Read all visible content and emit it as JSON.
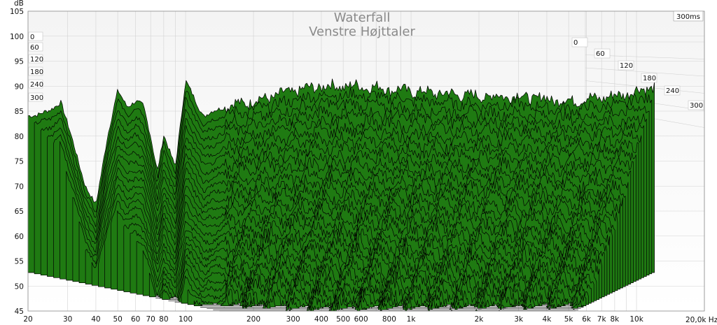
{
  "chart_data": {
    "type": "area",
    "title": "Waterfall",
    "subtitle": "Venstre Højttaler",
    "ylabel": "dB",
    "xlabel_unit": "20,0k Hz",
    "xscale": "log",
    "xlim": [
      20,
      20000
    ],
    "ylim": [
      45,
      105
    ],
    "time_span_label": "300ms",
    "y_ticks": [
      "105",
      "100",
      "95",
      "90",
      "85",
      "80",
      "75",
      "70",
      "65",
      "60",
      "55",
      "50",
      "45"
    ],
    "x_ticks": [
      "20",
      "30",
      "40",
      "50",
      "60",
      "70",
      "80",
      "100",
      "200",
      "300",
      "400",
      "500",
      "600",
      "800",
      "1k",
      "2k",
      "3k",
      "4k",
      "5k",
      "6k",
      "7k",
      "8k",
      "10k"
    ],
    "left_depth_labels": [
      "0",
      "60",
      "120",
      "180",
      "240",
      "300"
    ],
    "right_depth_labels": [
      "0",
      "60",
      "120",
      "180",
      "240",
      "300"
    ],
    "slices": 31,
    "slice_interval_ms": 10,
    "front_response_db": [
      {
        "f": 20,
        "db": 84
      },
      {
        "f": 25,
        "db": 85
      },
      {
        "f": 28,
        "db": 87
      },
      {
        "f": 32,
        "db": 78
      },
      {
        "f": 36,
        "db": 70
      },
      {
        "f": 40,
        "db": 66
      },
      {
        "f": 45,
        "db": 80
      },
      {
        "f": 50,
        "db": 89
      },
      {
        "f": 55,
        "db": 86
      },
      {
        "f": 60,
        "db": 87
      },
      {
        "f": 65,
        "db": 86
      },
      {
        "f": 70,
        "db": 80
      },
      {
        "f": 75,
        "db": 73
      },
      {
        "f": 80,
        "db": 80
      },
      {
        "f": 90,
        "db": 74
      },
      {
        "f": 100,
        "db": 91
      },
      {
        "f": 120,
        "db": 84
      },
      {
        "f": 150,
        "db": 86
      },
      {
        "f": 200,
        "db": 87
      },
      {
        "f": 300,
        "db": 89
      },
      {
        "f": 400,
        "db": 90
      },
      {
        "f": 600,
        "db": 90
      },
      {
        "f": 1000,
        "db": 89
      },
      {
        "f": 2000,
        "db": 88
      },
      {
        "f": 3000,
        "db": 88
      },
      {
        "f": 5000,
        "db": 87
      },
      {
        "f": 8000,
        "db": 88
      },
      {
        "f": 10000,
        "db": 89
      },
      {
        "f": 12000,
        "db": 90
      }
    ],
    "series_color": "#1f7a12",
    "edge_color": "#000000",
    "grid": true
  }
}
